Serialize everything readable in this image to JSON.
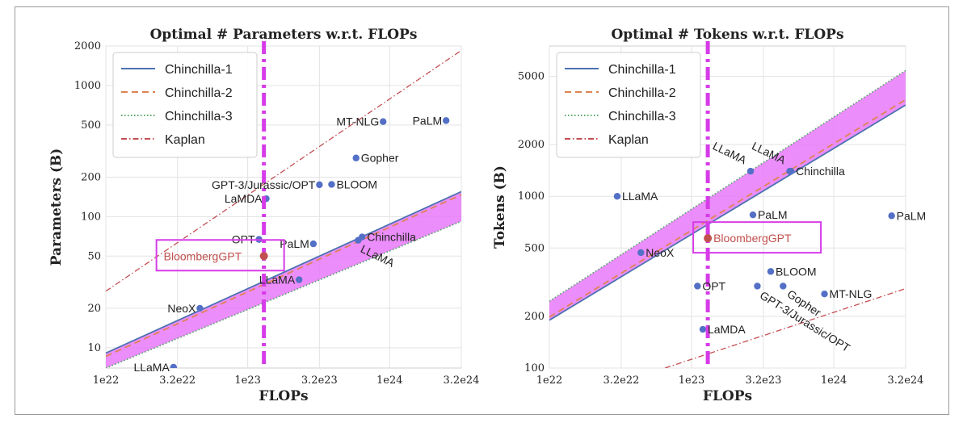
{
  "colors": {
    "chinchilla1": "#4c72b0",
    "chinchilla2": "#dd8452",
    "chinchilla3": "#55a868",
    "kaplan": "#c44e52",
    "band": "#e879f9",
    "vline": "#d63be8",
    "points": "#5470c6",
    "bloomberg_point": "#c0504d",
    "box": "#d63be8",
    "bloomberg_text": "#c0504d"
  },
  "legend": {
    "items": [
      {
        "label": "Chinchilla-1",
        "style": "solid",
        "color": "#4c72b0"
      },
      {
        "label": "Chinchilla-2",
        "style": "dashed",
        "color": "#dd8452"
      },
      {
        "label": "Chinchilla-3",
        "style": "dotted",
        "color": "#55a868"
      },
      {
        "label": "Kaplan",
        "style": "dashdot",
        "color": "#c44e52"
      }
    ]
  },
  "chart_data": [
    {
      "type": "scatter",
      "title": "Optimal # Parameters w.r.t. FLOPs",
      "xlabel": "FLOPs",
      "ylabel": "Parameters (B)",
      "x_scale": "log",
      "y_scale": "log",
      "xlim": [
        1e+22,
        3.2e+24
      ],
      "ylim": [
        7,
        2000
      ],
      "x_ticks": [
        {
          "value": 1e+22,
          "label": "1e22"
        },
        {
          "value": 3.2e+22,
          "label": "3.2e22"
        },
        {
          "value": 1e+23,
          "label": "1e23"
        },
        {
          "value": 3.2e+23,
          "label": "3.2e23"
        },
        {
          "value": 1e+24,
          "label": "1e24"
        },
        {
          "value": 3.2e+24,
          "label": "3.2e24"
        }
      ],
      "y_ticks": [
        {
          "value": 10,
          "label": "10"
        },
        {
          "value": 20,
          "label": "20"
        },
        {
          "value": 50,
          "label": "50"
        },
        {
          "value": 100,
          "label": "100"
        },
        {
          "value": 200,
          "label": "200"
        },
        {
          "value": 500,
          "label": "500"
        },
        {
          "value": 1000,
          "label": "1000"
        },
        {
          "value": 2000,
          "label": "2000"
        }
      ],
      "grid": true,
      "legend_position": "top-left",
      "vertical_line_x": 1.3e+23,
      "lines": [
        {
          "name": "Chinchilla-1",
          "style": "solid",
          "points": [
            [
              1e+22,
              9.1
            ],
            [
              3.2e+24,
              155
            ]
          ]
        },
        {
          "name": "Chinchilla-2",
          "style": "dashed",
          "points": [
            [
              1e+22,
              8.6
            ],
            [
              3.2e+24,
              147
            ]
          ]
        },
        {
          "name": "Chinchilla-3",
          "style": "dotted",
          "points": [
            [
              1e+22,
              7.0
            ],
            [
              3.2e+24,
              92
            ]
          ]
        },
        {
          "name": "Kaplan",
          "style": "dashdot",
          "points": [
            [
              1e+22,
              27
            ],
            [
              3.2e+24,
              1850
            ]
          ]
        }
      ],
      "band": {
        "upper": [
          [
            1e+22,
            9.1
          ],
          [
            3.2e+24,
            155
          ]
        ],
        "lower": [
          [
            1e+22,
            7.0
          ],
          [
            3.2e+24,
            92
          ]
        ]
      },
      "points": [
        {
          "label": "MT-NLG",
          "x": 9e+23,
          "y": 530,
          "anchor": "end"
        },
        {
          "label": "PaLM",
          "x": 2.5e+24,
          "y": 540,
          "anchor": "end"
        },
        {
          "label": "Gopher",
          "x": 5.8e+23,
          "y": 280,
          "anchor": "start"
        },
        {
          "label": "GPT-3/Jurassic/OPT",
          "x": 3.2e+23,
          "y": 175,
          "anchor": "end"
        },
        {
          "label": "BLOOM",
          "x": 3.9e+23,
          "y": 176,
          "anchor": "start"
        },
        {
          "label": "LaMDA",
          "x": 1.35e+23,
          "y": 137,
          "anchor": "end"
        },
        {
          "label": "OPT",
          "x": 1.2e+23,
          "y": 67,
          "anchor": "end"
        },
        {
          "label": "PaLM",
          "x": 2.9e+23,
          "y": 62,
          "anchor": "end"
        },
        {
          "label": "Chinchilla",
          "x": 6.4e+23,
          "y": 70,
          "anchor": "start"
        },
        {
          "label": "LLaMA",
          "x": 6e+23,
          "y": 66,
          "anchor": "rot"
        },
        {
          "label": "LLaMA",
          "x": 2.3e+23,
          "y": 33,
          "anchor": "end"
        },
        {
          "label": "NeoX",
          "x": 4.6e+22,
          "y": 20,
          "anchor": "end"
        },
        {
          "label": "LLaMA",
          "x": 3e+22,
          "y": 7.1,
          "anchor": "end"
        }
      ],
      "highlight": {
        "label": "BloombergGPT",
        "x": 1.3e+23,
        "y": 50
      }
    },
    {
      "type": "scatter",
      "title": "Optimal # Tokens w.r.t. FLOPs",
      "xlabel": "FLOPs",
      "ylabel": "Tokens (B)",
      "x_scale": "log",
      "y_scale": "log",
      "xlim": [
        1e+22,
        3.2e+24
      ],
      "ylim": [
        100,
        7500
      ],
      "x_ticks": [
        {
          "value": 1e+22,
          "label": "1e22"
        },
        {
          "value": 3.2e+22,
          "label": "3.2e22"
        },
        {
          "value": 1e+23,
          "label": "1e23"
        },
        {
          "value": 3.2e+23,
          "label": "3.2e23"
        },
        {
          "value": 1e+24,
          "label": "1e24"
        },
        {
          "value": 3.2e+24,
          "label": "3.2e24"
        }
      ],
      "y_ticks": [
        {
          "value": 100,
          "label": "100"
        },
        {
          "value": 200,
          "label": "200"
        },
        {
          "value": 500,
          "label": "500"
        },
        {
          "value": 1000,
          "label": "1000"
        },
        {
          "value": 2000,
          "label": "2000"
        },
        {
          "value": 5000,
          "label": "5000"
        }
      ],
      "grid": true,
      "legend_position": "top-left",
      "vertical_line_x": 1.3e+23,
      "lines": [
        {
          "name": "Chinchilla-1",
          "style": "solid",
          "points": [
            [
              1e+22,
              190
            ],
            [
              3.2e+24,
              3400
            ]
          ]
        },
        {
          "name": "Chinchilla-2",
          "style": "dashed",
          "points": [
            [
              1e+22,
              198
            ],
            [
              3.2e+24,
              3650
            ]
          ]
        },
        {
          "name": "Chinchilla-3",
          "style": "dotted",
          "points": [
            [
              1e+22,
              245
            ],
            [
              3.2e+24,
              5400
            ]
          ]
        },
        {
          "name": "Kaplan",
          "style": "dashdot",
          "points": [
            [
              6.5e+22,
              100
            ],
            [
              3.2e+24,
              290
            ]
          ]
        }
      ],
      "band": {
        "upper": [
          [
            1e+22,
            245
          ],
          [
            3.2e+24,
            5400
          ]
        ],
        "lower": [
          [
            1e+22,
            190
          ],
          [
            3.2e+24,
            3400
          ]
        ]
      },
      "points": [
        {
          "label": "LLaMA",
          "x": 2.6e+23,
          "y": 1400,
          "anchor": "rot"
        },
        {
          "label": "LLaMA",
          "x": 4.9e+23,
          "y": 1400,
          "anchor": "rot"
        },
        {
          "label": "Chinchilla",
          "x": 5e+23,
          "y": 1400,
          "anchor": "start"
        },
        {
          "label": "LLaMA",
          "x": 3e+22,
          "y": 1000,
          "anchor": "start"
        },
        {
          "label": "PaLM",
          "x": 2.7e+23,
          "y": 780,
          "anchor": "start"
        },
        {
          "label": "PaLM",
          "x": 2.55e+24,
          "y": 770,
          "anchor": "start"
        },
        {
          "label": "NeoX",
          "x": 4.4e+22,
          "y": 470,
          "anchor": "start"
        },
        {
          "label": "BLOOM",
          "x": 3.6e+23,
          "y": 365,
          "anchor": "start"
        },
        {
          "label": "OPT",
          "x": 1.1e+23,
          "y": 300,
          "anchor": "start"
        },
        {
          "label": "Gopher",
          "x": 4.4e+23,
          "y": 300,
          "anchor": "rot"
        },
        {
          "label": "GPT-3/Jurassic/OPT",
          "x": 2.9e+23,
          "y": 300,
          "anchor": "rot"
        },
        {
          "label": "MT-NLG",
          "x": 8.6e+23,
          "y": 270,
          "anchor": "start"
        },
        {
          "label": "LaMDA",
          "x": 1.2e+23,
          "y": 168,
          "anchor": "start"
        }
      ],
      "highlight": {
        "label": "BloombergGPT",
        "x": 1.3e+23,
        "y": 570
      }
    }
  ]
}
